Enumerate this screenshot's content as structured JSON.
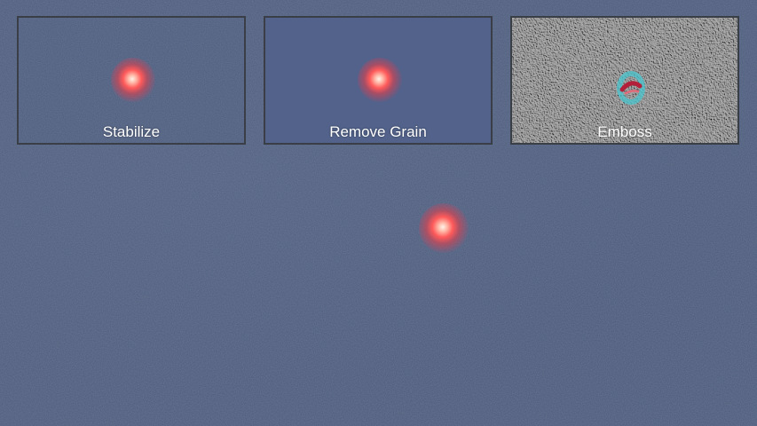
{
  "panels": [
    {
      "label": "Stabilize"
    },
    {
      "label": "Remove Grain"
    },
    {
      "label": "Emboss"
    }
  ],
  "colors": {
    "sky": "#4c5b7d",
    "light_core": "#fff3ea",
    "light_glow": "#ff5a5a",
    "emboss_gray": "#9c9c9c",
    "panel_border": "#3a3e47"
  }
}
